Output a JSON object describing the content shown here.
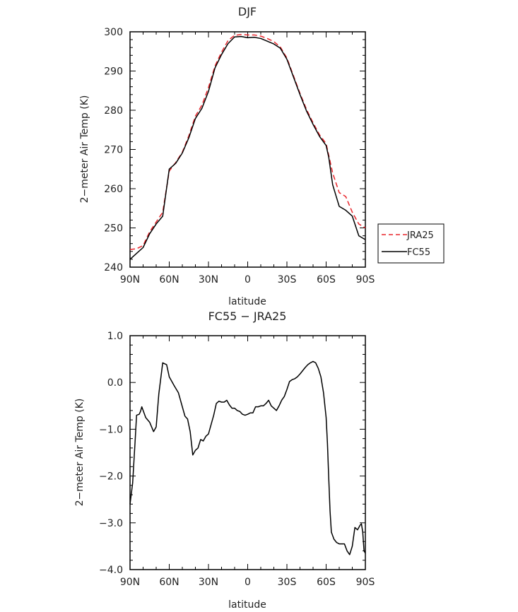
{
  "chart_data": [
    {
      "type": "line",
      "title": "DJF",
      "xlabel": "latitude",
      "ylabel": "2−meter Air Temp (K)",
      "xlim": [
        -90,
        90
      ],
      "ylim": [
        240,
        300
      ],
      "xticks": [
        -90,
        -60,
        -30,
        0,
        30,
        60,
        90
      ],
      "xtick_labels": [
        "90N",
        "60N",
        "30N",
        "0",
        "30S",
        "60S",
        "90S"
      ],
      "yticks": [
        240,
        250,
        260,
        270,
        280,
        290,
        300
      ],
      "ytick_labels": [
        "240",
        "250",
        "260",
        "270",
        "280",
        "290",
        "300"
      ],
      "legend": {
        "placement": "right",
        "entries": [
          "JRA25",
          "FC55"
        ]
      },
      "series": [
        {
          "name": "JRA25",
          "color": "#e8242a",
          "dash": "dashed",
          "x": [
            -90,
            -85,
            -80,
            -75,
            -70,
            -65,
            -60,
            -55,
            -50,
            -45,
            -40,
            -35,
            -30,
            -25,
            -20,
            -15,
            -10,
            -5,
            0,
            5,
            10,
            15,
            20,
            25,
            30,
            35,
            40,
            45,
            50,
            55,
            60,
            62,
            65,
            70,
            75,
            80,
            85,
            90
          ],
          "y": [
            244.5,
            244.7,
            245.5,
            249,
            251.5,
            254,
            264.5,
            266.7,
            269.3,
            273.5,
            278.5,
            281.3,
            285.8,
            291.3,
            294.8,
            297.8,
            299.1,
            299.3,
            299.2,
            299.2,
            298.9,
            298.3,
            297.5,
            296.1,
            293.3,
            288.8,
            284.3,
            280.2,
            276.8,
            273.7,
            271.5,
            268.5,
            264,
            259,
            258,
            254,
            251,
            250
          ]
        },
        {
          "name": "FC55",
          "color": "#000000",
          "dash": "solid",
          "x": [
            -90,
            -85,
            -80,
            -75,
            -70,
            -65,
            -60,
            -55,
            -50,
            -45,
            -40,
            -35,
            -30,
            -25,
            -20,
            -15,
            -10,
            -5,
            0,
            5,
            10,
            15,
            20,
            25,
            30,
            35,
            40,
            45,
            50,
            55,
            60,
            62,
            65,
            70,
            75,
            80,
            85,
            90
          ],
          "y": [
            242,
            243.5,
            245,
            248.5,
            251,
            253,
            265,
            266.5,
            269.1,
            273,
            277.9,
            280.5,
            284.8,
            290.8,
            294.2,
            297,
            298.7,
            298.8,
            298.5,
            298.6,
            298.3,
            297.6,
            296.9,
            295.8,
            293,
            288.5,
            284,
            279.8,
            276.4,
            273.3,
            271,
            268,
            261,
            255.5,
            254.5,
            253,
            248,
            247
          ]
        }
      ]
    },
    {
      "type": "line",
      "title": "FC55 − JRA25",
      "xlabel": "latitude",
      "ylabel": "2−meter Air Temp (K)",
      "xlim": [
        -90,
        90
      ],
      "ylim": [
        -4,
        1
      ],
      "xticks": [
        -90,
        -60,
        -30,
        0,
        30,
        60,
        90
      ],
      "xtick_labels": [
        "90N",
        "60N",
        "30N",
        "0",
        "30S",
        "60S",
        "90S"
      ],
      "yticks": [
        -4,
        -3,
        -2,
        -1,
        0,
        1
      ],
      "ytick_labels": [
        "−4.0",
        "−3.0",
        "−2.0",
        "−1.0",
        "0.0",
        "1.0"
      ],
      "series": [
        {
          "color": "#000000",
          "dash": "solid",
          "x": [
            -90,
            -88,
            -86,
            -85,
            -83,
            -82,
            -81,
            -78,
            -75,
            -72,
            -70,
            -68,
            -65,
            -62,
            -60,
            -58,
            -56,
            -53,
            -50,
            -48,
            -46,
            -44,
            -42,
            -40,
            -38,
            -36,
            -34,
            -32,
            -30,
            -28,
            -26,
            -24,
            -22,
            -20,
            -18,
            -16,
            -14,
            -12,
            -10,
            -8,
            -6,
            -4,
            -2,
            0,
            2,
            4,
            6,
            8,
            10,
            12,
            14,
            16,
            18,
            20,
            22,
            24,
            26,
            28,
            30,
            32,
            34,
            36,
            38,
            40,
            42,
            44,
            46,
            48,
            50,
            52,
            54,
            56,
            58,
            60,
            61,
            62,
            63,
            64,
            66,
            68,
            70,
            72,
            74,
            76,
            78,
            80,
            82,
            84,
            86,
            87,
            88,
            89,
            90
          ],
          "y": [
            -2.6,
            -2.15,
            -1.2,
            -0.7,
            -0.68,
            -0.62,
            -0.52,
            -0.75,
            -0.85,
            -1.05,
            -0.95,
            -0.25,
            0.42,
            0.38,
            0.12,
            0.02,
            -0.08,
            -0.22,
            -0.52,
            -0.72,
            -0.78,
            -1.05,
            -1.55,
            -1.45,
            -1.4,
            -1.22,
            -1.25,
            -1.15,
            -1.1,
            -0.9,
            -0.7,
            -0.45,
            -0.4,
            -0.42,
            -0.42,
            -0.38,
            -0.48,
            -0.55,
            -0.55,
            -0.6,
            -0.62,
            -0.68,
            -0.7,
            -0.68,
            -0.65,
            -0.65,
            -0.52,
            -0.52,
            -0.5,
            -0.5,
            -0.45,
            -0.38,
            -0.5,
            -0.55,
            -0.6,
            -0.5,
            -0.38,
            -0.3,
            -0.15,
            0.02,
            0.06,
            0.08,
            0.12,
            0.18,
            0.25,
            0.32,
            0.38,
            0.42,
            0.45,
            0.42,
            0.3,
            0.12,
            -0.22,
            -0.75,
            -1.3,
            -2.05,
            -2.75,
            -3.2,
            -3.35,
            -3.42,
            -3.45,
            -3.45,
            -3.45,
            -3.6,
            -3.68,
            -3.5,
            -3.1,
            -3.15,
            -3.05,
            -3.02,
            -3.2,
            -3.6,
            -3.65
          ]
        }
      ]
    }
  ]
}
